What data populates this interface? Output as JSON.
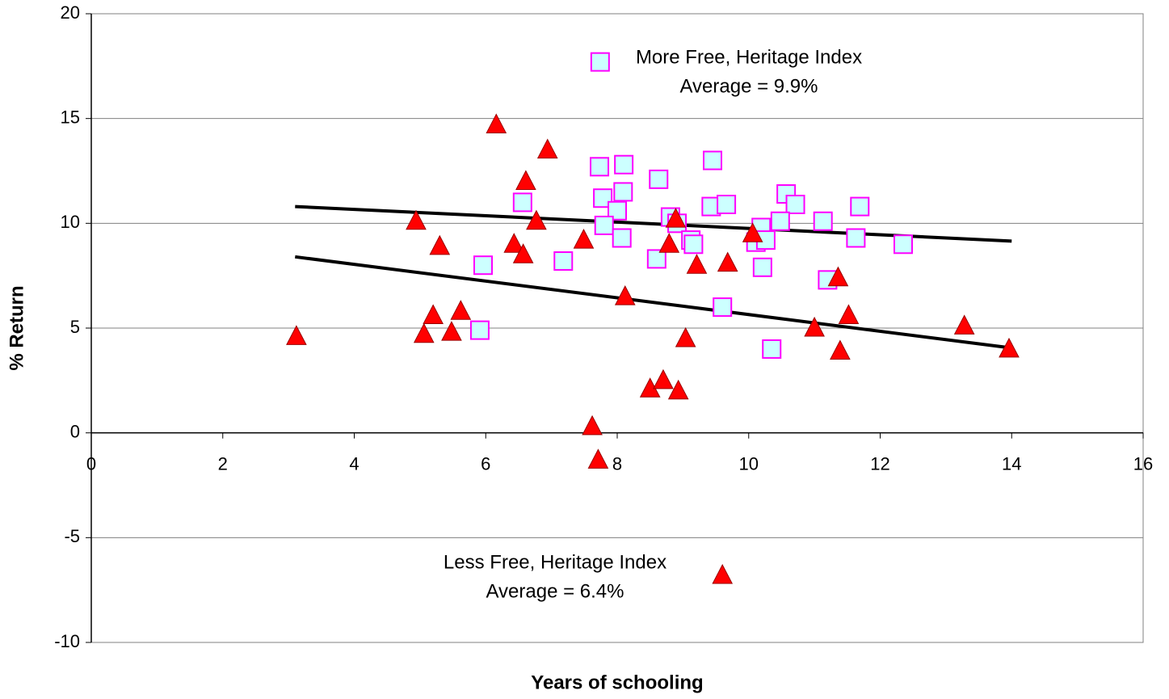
{
  "chart_data": {
    "type": "scatter",
    "xlabel": "Years of schooling",
    "ylabel": "% Return",
    "xlim": [
      0,
      16
    ],
    "xticks": [
      0,
      2,
      4,
      6,
      8,
      10,
      12,
      14,
      16
    ],
    "ylim": [
      -10,
      20
    ],
    "yticks": [
      -10,
      -5,
      0,
      5,
      10,
      15,
      20
    ],
    "grid": true,
    "annotations": [
      [
        "More Free, Heritage Index",
        "Average = 9.9%"
      ],
      [
        "Less Free, Heritage Index",
        "Average = 6.4%"
      ]
    ],
    "series": [
      {
        "marker": "square",
        "color": "#ccffff",
        "edgecolor": "#ff00ff",
        "x": [
          7.74,
          7.73,
          8.1,
          9.45,
          8.63,
          6.56,
          7.78,
          8.09,
          8.0,
          7.8,
          8.07,
          9.43,
          9.66,
          10.57,
          10.71,
          10.48,
          10.19,
          10.11,
          10.26,
          11.13,
          11.69,
          11.63,
          12.35,
          8.81,
          8.91,
          9.12,
          9.16,
          8.6,
          7.18,
          5.96,
          10.21,
          11.2,
          9.6,
          10.35,
          5.91
        ],
        "values": [
          17.7,
          12.7,
          12.8,
          13.0,
          12.1,
          11.0,
          11.2,
          11.5,
          10.6,
          9.9,
          9.3,
          10.8,
          10.9,
          11.4,
          10.9,
          10.1,
          9.8,
          9.1,
          9.2,
          10.1,
          10.8,
          9.3,
          9.0,
          10.3,
          10.0,
          9.2,
          9.0,
          8.3,
          8.2,
          8.0,
          7.9,
          7.3,
          6.0,
          4.0,
          4.9
        ]
      },
      {
        "marker": "triangle",
        "color": "#ff0000",
        "edgecolor": "#990000",
        "x": [
          6.16,
          6.94,
          6.61,
          4.94,
          6.77,
          5.3,
          6.43,
          6.57,
          7.49,
          8.89,
          8.79,
          9.21,
          9.68,
          10.06,
          8.12,
          5.2,
          5.62,
          5.06,
          5.48,
          3.12,
          9.04,
          8.5,
          8.7,
          8.93,
          7.62,
          7.71,
          11.36,
          11.0,
          11.39,
          11.52,
          13.28,
          13.96,
          9.6
        ],
        "values": [
          14.7,
          13.5,
          12.0,
          10.1,
          10.1,
          8.9,
          9.0,
          8.5,
          9.2,
          10.2,
          9.0,
          8.0,
          8.1,
          9.5,
          6.5,
          5.6,
          5.8,
          4.7,
          4.8,
          4.6,
          4.5,
          2.1,
          2.5,
          2.0,
          0.3,
          -1.3,
          7.4,
          5.0,
          3.9,
          5.6,
          5.1,
          4.0,
          -6.8
        ]
      }
    ],
    "trendlines": [
      {
        "color": "#000000",
        "x": [
          3.1,
          14
        ],
        "values": [
          10.8,
          9.15
        ]
      },
      {
        "color": "#000000",
        "x": [
          3.1,
          14
        ],
        "values": [
          8.4,
          4.05
        ]
      }
    ]
  }
}
